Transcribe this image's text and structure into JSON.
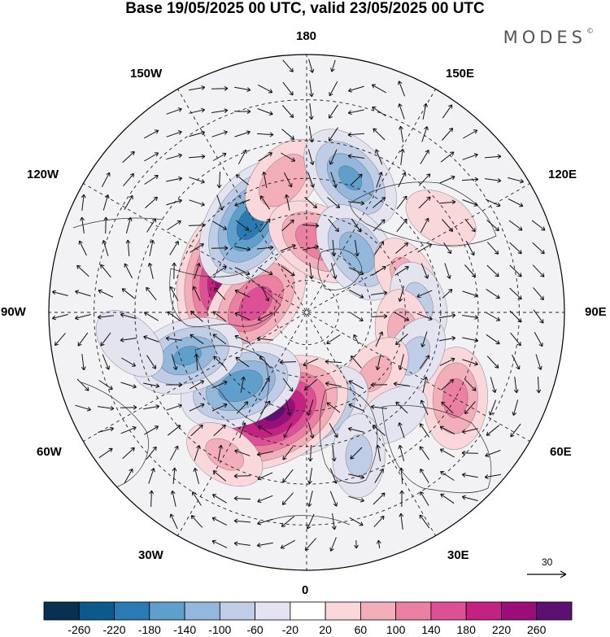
{
  "title": "Base 19/05/2025 00 UTC, valid 23/05/2025 00 UTC",
  "brand": {
    "name": "MODES",
    "mark": "©"
  },
  "map": {
    "projection": "north-polar-stereographic",
    "longitude_labels": {
      "top": "180",
      "bottom": "0",
      "left": "90W",
      "right": "90E",
      "upper_left": "150W",
      "upper_right": "150E",
      "left_upper": "120W",
      "right_upper": "120E",
      "left_lower": "60W",
      "right_lower": "60E",
      "lower_left": "30W",
      "lower_right": "30E"
    },
    "field": "shaded anomaly with wind vectors",
    "grid": true,
    "coastlines": true
  },
  "reference_vector": {
    "label": "30"
  },
  "colorbar": {
    "colors": [
      "#08304f",
      "#0b5a8a",
      "#2a7ab3",
      "#5f9fcc",
      "#93b8db",
      "#c0cde6",
      "#e4e4f1",
      "#ffffff",
      "#f9d7db",
      "#f2aeb9",
      "#eb80a2",
      "#de5095",
      "#c42282",
      "#9b0e7a",
      "#5c1070"
    ],
    "ticks": [
      "-260",
      "-220",
      "-180",
      "-140",
      "-100",
      "-60",
      "-20",
      "20",
      "60",
      "100",
      "140",
      "180",
      "220",
      "260"
    ]
  },
  "anomalies": [
    {
      "lon": -112,
      "lat": 63,
      "value": 230
    },
    {
      "lon": -100,
      "lat": 74,
      "value": 160
    },
    {
      "lon": -148,
      "lat": 58,
      "value": -200
    },
    {
      "lon": -170,
      "lat": 50,
      "value": 90
    },
    {
      "lon": 170,
      "lat": 68,
      "value": 130
    },
    {
      "lon": 162,
      "lat": 48,
      "value": -140
    },
    {
      "lon": 140,
      "lat": 66,
      "value": -120
    },
    {
      "lon": 110,
      "lat": 58,
      "value": 60
    },
    {
      "lon": 95,
      "lat": 56,
      "value": -60
    },
    {
      "lon": 78,
      "lat": 60,
      "value": 70
    },
    {
      "lon": 60,
      "lat": 40,
      "value": 110
    },
    {
      "lon": 68,
      "lat": 55,
      "value": -60
    },
    {
      "lon": 48,
      "lat": 62,
      "value": 60
    },
    {
      "lon": 40,
      "lat": 50,
      "value": -40
    },
    {
      "lon": 5,
      "lat": 60,
      "value": -150
    },
    {
      "lon": -18,
      "lat": 58,
      "value": 260
    },
    {
      "lon": -42,
      "lat": 60,
      "value": -170
    },
    {
      "lon": -70,
      "lat": 52,
      "value": -140
    },
    {
      "lon": -30,
      "lat": 42,
      "value": 60
    },
    {
      "lon": 20,
      "lat": 45,
      "value": -60
    },
    {
      "lon": -80,
      "lat": 38,
      "value": -50
    },
    {
      "lon": 125,
      "lat": 42,
      "value": 40
    }
  ]
}
